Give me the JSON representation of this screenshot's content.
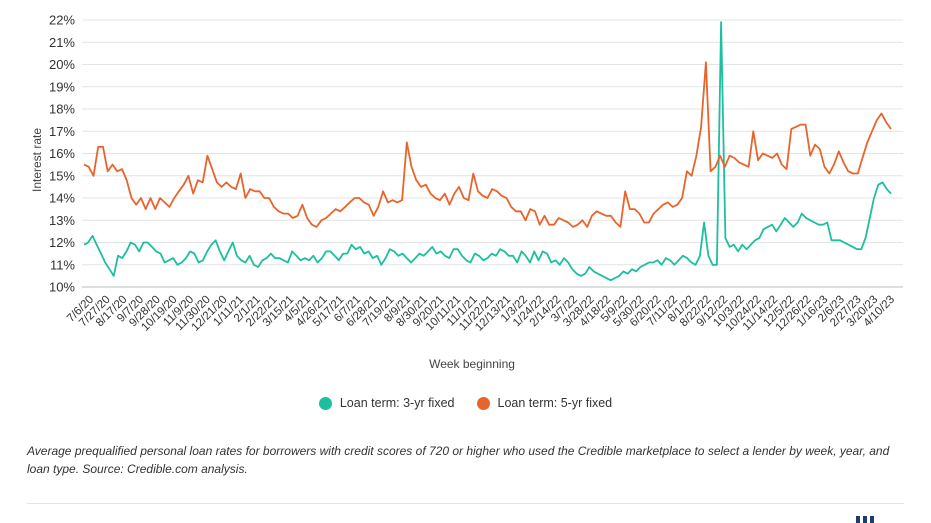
{
  "chart_data": {
    "type": "line",
    "title": "",
    "xlabel": "Week beginning",
    "ylabel": "Interest rate",
    "ylim": [
      10,
      22
    ],
    "yticks": [
      "10%",
      "11%",
      "12%",
      "13%",
      "14%",
      "15%",
      "16%",
      "17%",
      "18%",
      "19%",
      "20%",
      "21%",
      "22%"
    ],
    "grid": "horizontal",
    "legend_position": "bottom-center",
    "x_tick_labels": [
      "7/6/20",
      "7/27/20",
      "8/17/20",
      "9/7/20",
      "9/28/20",
      "10/19/20",
      "11/9/20",
      "11/30/20",
      "12/21/20",
      "1/11/21",
      "2/1/21",
      "2/22/21",
      "3/15/21",
      "4/5/21",
      "4/26/21",
      "5/17/21",
      "6/7/21",
      "6/28/21",
      "7/19/21",
      "8/9/21",
      "8/30/21",
      "9/20/21",
      "10/11/21",
      "11/1/21",
      "11/22/21",
      "12/13/21",
      "1/3/22",
      "1/24/22",
      "2/14/22",
      "3/7/22",
      "3/28/22",
      "4/18/22",
      "5/9/22",
      "5/30/22",
      "6/20/22",
      "7/11/22",
      "8/1/22",
      "8/22/22",
      "9/12/22",
      "10/3/22",
      "10/24/22",
      "11/14/22",
      "12/5/22",
      "12/26/22",
      "1/16/23",
      "2/6/23",
      "2/27/23",
      "3/20/23",
      "4/10/23"
    ],
    "series": [
      {
        "name": "Loan term: 3-yr fixed",
        "color": "#1dbf9f",
        "values": [
          11.9,
          12.0,
          12.3,
          11.9,
          11.5,
          11.1,
          10.8,
          10.5,
          11.4,
          11.3,
          11.6,
          12.0,
          11.9,
          11.6,
          12.0,
          12.0,
          11.8,
          11.6,
          11.5,
          11.1,
          11.2,
          11.3,
          11.0,
          11.1,
          11.3,
          11.6,
          11.5,
          11.1,
          11.2,
          11.6,
          11.9,
          12.1,
          11.6,
          11.2,
          11.6,
          12.0,
          11.4,
          11.2,
          11.1,
          11.4,
          11.0,
          10.9,
          11.2,
          11.3,
          11.5,
          11.3,
          11.3,
          11.2,
          11.1,
          11.6,
          11.4,
          11.2,
          11.3,
          11.2,
          11.4,
          11.1,
          11.3,
          11.6,
          11.6,
          11.4,
          11.2,
          11.5,
          11.5,
          11.9,
          11.7,
          11.8,
          11.5,
          11.6,
          11.3,
          11.4,
          11.0,
          11.3,
          11.7,
          11.6,
          11.4,
          11.5,
          11.3,
          11.1,
          11.3,
          11.5,
          11.4,
          11.6,
          11.8,
          11.5,
          11.6,
          11.4,
          11.3,
          11.7,
          11.7,
          11.4,
          11.2,
          11.1,
          11.5,
          11.4,
          11.2,
          11.3,
          11.5,
          11.4,
          11.7,
          11.6,
          11.4,
          11.4,
          11.1,
          11.6,
          11.4,
          11.1,
          11.6,
          11.2,
          11.6,
          11.5,
          11.1,
          11.2,
          11.0,
          11.3,
          11.1,
          10.8,
          10.6,
          10.5,
          10.6,
          10.9,
          10.7,
          10.6,
          10.5,
          10.4,
          10.3,
          10.4,
          10.5,
          10.7,
          10.6,
          10.8,
          10.7,
          10.9,
          11.0,
          11.1,
          11.1,
          11.2,
          11.0,
          11.3,
          11.2,
          11.0,
          11.2,
          11.4,
          11.3,
          11.1,
          11.0,
          11.4,
          12.9,
          11.4,
          11.0,
          11.0,
          21.9,
          12.2,
          11.8,
          11.9,
          11.6,
          11.9,
          11.7,
          11.9,
          12.1,
          12.2,
          12.6,
          12.7,
          12.8,
          12.5,
          12.8,
          13.1,
          12.9,
          12.7,
          12.9,
          13.3,
          13.1,
          13.0,
          12.9,
          12.8,
          12.8,
          12.9,
          12.1,
          12.1,
          12.1,
          12.0,
          11.9,
          11.8,
          11.7,
          11.7,
          12.2,
          13.1,
          14.0,
          14.6,
          14.7,
          14.4,
          14.2
        ]
      },
      {
        "name": "Loan term: 5-yr fixed",
        "color": "#e8642c",
        "values": [
          15.5,
          15.4,
          15.0,
          16.3,
          16.3,
          15.2,
          15.5,
          15.2,
          15.3,
          14.8,
          14.0,
          13.7,
          14.0,
          13.5,
          14.0,
          13.5,
          14.0,
          13.8,
          13.6,
          14.0,
          14.3,
          14.6,
          15.0,
          14.2,
          14.8,
          14.7,
          15.9,
          15.3,
          14.7,
          14.5,
          14.7,
          14.5,
          14.4,
          15.1,
          14.0,
          14.4,
          14.3,
          14.3,
          14.0,
          14.0,
          13.6,
          13.4,
          13.3,
          13.3,
          13.1,
          13.2,
          13.7,
          13.1,
          12.8,
          12.7,
          13.0,
          13.1,
          13.3,
          13.5,
          13.4,
          13.6,
          13.8,
          14.0,
          14.0,
          13.8,
          13.7,
          13.2,
          13.6,
          14.3,
          13.8,
          13.9,
          13.8,
          13.9,
          16.5,
          15.4,
          14.8,
          14.5,
          14.6,
          14.2,
          14.0,
          13.9,
          14.2,
          13.7,
          14.2,
          14.5,
          14.0,
          13.9,
          15.1,
          14.3,
          14.1,
          14.0,
          14.4,
          14.3,
          14.1,
          14.0,
          13.6,
          13.4,
          13.4,
          13.0,
          13.5,
          13.4,
          12.8,
          13.2,
          12.8,
          12.8,
          13.1,
          13.0,
          12.9,
          12.7,
          12.8,
          13.0,
          12.7,
          13.2,
          13.4,
          13.3,
          13.2,
          13.2,
          12.9,
          12.7,
          14.3,
          13.5,
          13.5,
          13.3,
          12.9,
          12.9,
          13.3,
          13.5,
          13.7,
          13.8,
          13.6,
          13.7,
          14.0,
          15.2,
          15.0,
          15.9,
          17.2,
          20.1,
          15.2,
          15.4,
          15.9,
          15.4,
          15.9,
          15.8,
          15.6,
          15.5,
          15.4,
          17.0,
          15.7,
          16.0,
          15.9,
          15.8,
          16.0,
          15.5,
          15.3,
          17.1,
          17.2,
          17.3,
          17.3,
          15.9,
          16.4,
          16.2,
          15.4,
          15.1,
          15.5,
          16.1,
          15.6,
          15.2,
          15.1,
          15.1,
          15.8,
          16.5,
          17.0,
          17.5,
          17.8,
          17.4,
          17.1
        ]
      }
    ]
  },
  "legend": {
    "items": [
      {
        "label": "Loan term: 3-yr fixed",
        "color": "#1dbf9f"
      },
      {
        "label": "Loan term: 5-yr fixed",
        "color": "#e8642c"
      }
    ]
  },
  "caption": "Average prequalified personal loan rates for borrowers with credit scores of 720 or higher who used the Credible marketplace to select a lender by week, year, and loan type. Source: Credible.com analysis."
}
